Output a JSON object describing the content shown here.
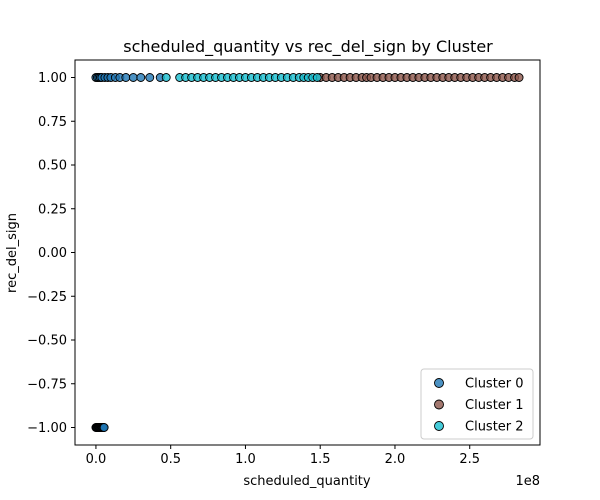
{
  "chart_data": {
    "type": "scatter",
    "title": "scheduled_quantity vs rec_del_sign by Cluster",
    "xlabel": "scheduled_quantity",
    "ylabel": "rec_del_sign",
    "x_offset_label": "1e8",
    "xlim": [
      -0.14,
      2.97
    ],
    "ylim": [
      -1.1,
      1.1
    ],
    "x_ticks": [
      0.0,
      0.5,
      1.0,
      1.5,
      2.0,
      2.5
    ],
    "x_tick_labels": [
      "0.0",
      "0.5",
      "1.0",
      "1.5",
      "2.0",
      "2.5"
    ],
    "y_ticks": [
      -1.0,
      -0.75,
      -0.5,
      -0.25,
      0.0,
      0.25,
      0.5,
      0.75,
      1.0
    ],
    "y_tick_labels": [
      "−1.00",
      "−0.75",
      "−0.50",
      "−0.25",
      "0.00",
      "0.25",
      "0.50",
      "0.75",
      "1.00"
    ],
    "legend_position": "lower-right",
    "grid": false,
    "series": [
      {
        "name": "Cluster 0",
        "color": "#1f77b4",
        "points": [
          {
            "x": 0.0,
            "y": 1
          },
          {
            "x": 0.01,
            "y": 1
          },
          {
            "x": 0.02,
            "y": 1
          },
          {
            "x": 0.03,
            "y": 1
          },
          {
            "x": 0.04,
            "y": 1
          },
          {
            "x": 0.06,
            "y": 1
          },
          {
            "x": 0.08,
            "y": 1
          },
          {
            "x": 0.1,
            "y": 1
          },
          {
            "x": 0.13,
            "y": 1
          },
          {
            "x": 0.16,
            "y": 1
          },
          {
            "x": 0.2,
            "y": 1
          },
          {
            "x": 0.25,
            "y": 1
          },
          {
            "x": 0.3,
            "y": 1
          },
          {
            "x": 0.36,
            "y": 1
          },
          {
            "x": 0.43,
            "y": 1
          },
          {
            "x": 0.0,
            "y": -1
          },
          {
            "x": 0.005,
            "y": -1
          },
          {
            "x": 0.01,
            "y": -1
          },
          {
            "x": 0.015,
            "y": -1
          },
          {
            "x": 0.02,
            "y": -1
          },
          {
            "x": 0.025,
            "y": -1
          },
          {
            "x": 0.03,
            "y": -1
          },
          {
            "x": 0.035,
            "y": -1
          },
          {
            "x": 0.04,
            "y": -1
          },
          {
            "x": 0.045,
            "y": -1
          },
          {
            "x": 0.05,
            "y": -1
          },
          {
            "x": 0.055,
            "y": -1
          }
        ]
      },
      {
        "name": "Cluster 1",
        "color": "#8c564b",
        "points": [
          {
            "x": 1.5,
            "y": 1
          },
          {
            "x": 1.54,
            "y": 1
          },
          {
            "x": 1.58,
            "y": 1
          },
          {
            "x": 1.62,
            "y": 1
          },
          {
            "x": 1.66,
            "y": 1
          },
          {
            "x": 1.7,
            "y": 1
          },
          {
            "x": 1.74,
            "y": 1
          },
          {
            "x": 1.78,
            "y": 1
          },
          {
            "x": 1.81,
            "y": 1
          },
          {
            "x": 1.84,
            "y": 1
          },
          {
            "x": 1.88,
            "y": 1
          },
          {
            "x": 1.92,
            "y": 1
          },
          {
            "x": 1.96,
            "y": 1
          },
          {
            "x": 2.0,
            "y": 1
          },
          {
            "x": 2.04,
            "y": 1
          },
          {
            "x": 2.08,
            "y": 1
          },
          {
            "x": 2.12,
            "y": 1
          },
          {
            "x": 2.16,
            "y": 1
          },
          {
            "x": 2.2,
            "y": 1
          },
          {
            "x": 2.24,
            "y": 1
          },
          {
            "x": 2.28,
            "y": 1
          },
          {
            "x": 2.32,
            "y": 1
          },
          {
            "x": 2.36,
            "y": 1
          },
          {
            "x": 2.4,
            "y": 1
          },
          {
            "x": 2.44,
            "y": 1
          },
          {
            "x": 2.48,
            "y": 1
          },
          {
            "x": 2.52,
            "y": 1
          },
          {
            "x": 2.56,
            "y": 1
          },
          {
            "x": 2.6,
            "y": 1
          },
          {
            "x": 2.64,
            "y": 1
          },
          {
            "x": 2.68,
            "y": 1
          },
          {
            "x": 2.72,
            "y": 1
          },
          {
            "x": 2.76,
            "y": 1
          },
          {
            "x": 2.8,
            "y": 1
          },
          {
            "x": 2.83,
            "y": 1
          }
        ]
      },
      {
        "name": "Cluster 2",
        "color": "#17becf",
        "points": [
          {
            "x": 0.47,
            "y": 1
          },
          {
            "x": 0.56,
            "y": 1
          },
          {
            "x": 0.6,
            "y": 1
          },
          {
            "x": 0.64,
            "y": 1
          },
          {
            "x": 0.68,
            "y": 1
          },
          {
            "x": 0.72,
            "y": 1
          },
          {
            "x": 0.76,
            "y": 1
          },
          {
            "x": 0.8,
            "y": 1
          },
          {
            "x": 0.84,
            "y": 1
          },
          {
            "x": 0.88,
            "y": 1
          },
          {
            "x": 0.92,
            "y": 1
          },
          {
            "x": 0.96,
            "y": 1
          },
          {
            "x": 1.0,
            "y": 1
          },
          {
            "x": 1.04,
            "y": 1
          },
          {
            "x": 1.08,
            "y": 1
          },
          {
            "x": 1.12,
            "y": 1
          },
          {
            "x": 1.16,
            "y": 1
          },
          {
            "x": 1.2,
            "y": 1
          },
          {
            "x": 1.24,
            "y": 1
          },
          {
            "x": 1.28,
            "y": 1
          },
          {
            "x": 1.32,
            "y": 1
          },
          {
            "x": 1.36,
            "y": 1
          },
          {
            "x": 1.39,
            "y": 1
          },
          {
            "x": 1.42,
            "y": 1
          },
          {
            "x": 1.45,
            "y": 1
          },
          {
            "x": 1.48,
            "y": 1
          }
        ]
      }
    ]
  }
}
